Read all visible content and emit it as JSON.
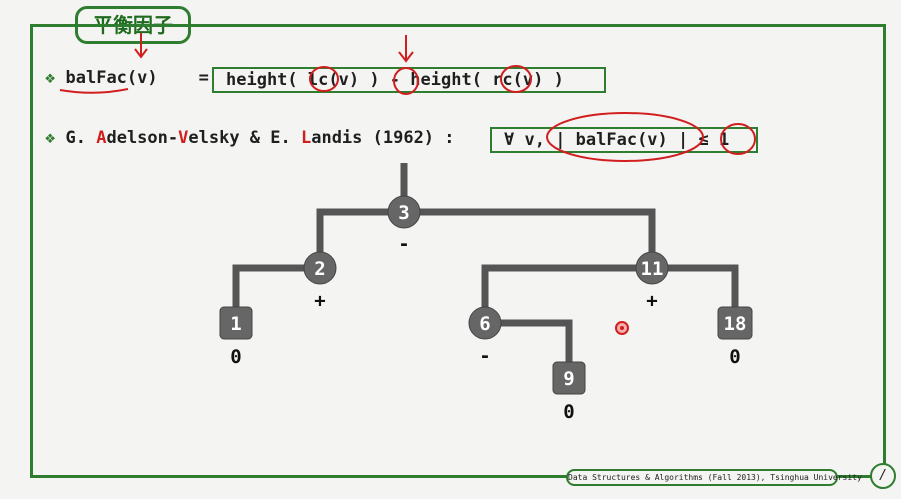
{
  "slide": {
    "title": "平衡因子",
    "footer": "Data Structures & Algorithms (Fall 2013), Tsinghua University",
    "page_number": "/"
  },
  "definition": {
    "bullet": "❖",
    "lhs": "balFac(v)",
    "equals": "=",
    "rhs_part1": "height( ",
    "rhs_lc": "lc",
    "rhs_part2": "(v) ) ",
    "rhs_minus": "-",
    "rhs_part3": " height( ",
    "rhs_rc": "rc",
    "rhs_part4": "(v) )"
  },
  "avl": {
    "bullet": "❖",
    "g_initial": "G. ",
    "a_letter": "A",
    "adelson_rest": "delson-",
    "v_letter": "V",
    "velsky_rest": "elsky & E. ",
    "l_letter": "L",
    "landis_rest": "andis (1962) :",
    "condition_forall": "∀ v, ",
    "condition_abs": "| balFac(v) |",
    "condition_le": " ≤ ",
    "condition_one": "1"
  },
  "tree": {
    "nodes": [
      {
        "id": "3",
        "shape": "circle",
        "balance": "-"
      },
      {
        "id": "2",
        "shape": "circle",
        "balance": "+"
      },
      {
        "id": "11",
        "shape": "circle",
        "balance": "+"
      },
      {
        "id": "1",
        "shape": "square",
        "balance": "0"
      },
      {
        "id": "6",
        "shape": "circle",
        "balance": "-"
      },
      {
        "id": "18",
        "shape": "square",
        "balance": "0"
      },
      {
        "id": "9",
        "shape": "square",
        "balance": "0"
      }
    ],
    "edges": [
      [
        "3",
        "2"
      ],
      [
        "3",
        "11"
      ],
      [
        "2",
        "1"
      ],
      [
        "11",
        "6"
      ],
      [
        "11",
        "18"
      ],
      [
        "6",
        "9"
      ]
    ]
  },
  "colors": {
    "frame": "#2f7d2f",
    "annotation_red": "#d11e1e",
    "node_fill": "#666666",
    "edge": "#555555"
  }
}
